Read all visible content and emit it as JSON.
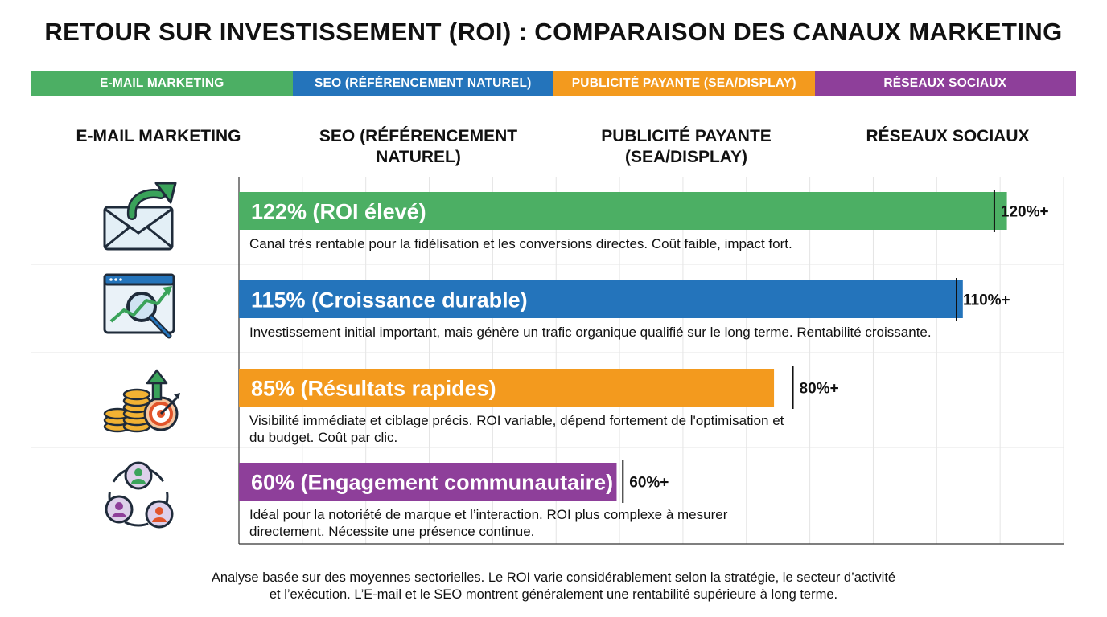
{
  "title": "RETOUR SUR INVESTISSEMENT (ROI) : COMPARAISON DES CANAUX MARKETING",
  "legend": [
    {
      "label": "E-MAIL MARKETING",
      "color": "#4CAF64"
    },
    {
      "label": "SEO (RÉFÉRENCEMENT NATUREL)",
      "color": "#2474BB"
    },
    {
      "label": "PUBLICITÉ PAYANTE (SEA/DISPLAY)",
      "color": "#F39A1E"
    },
    {
      "label": "RÉSEAUX SOCIAUX",
      "color": "#8E3F9A"
    }
  ],
  "column_headers": [
    {
      "line1": "E-MAIL MARKETING",
      "line2": ""
    },
    {
      "line1": "SEO (RÉFÉRENCEMENT",
      "line2": "NATUREL)"
    },
    {
      "line1": "PUBLICITÉ PAYANTE",
      "line2": "(SEA/DISPLAY)"
    },
    {
      "line1": "RÉSEAUX SOCIAUX",
      "line2": ""
    }
  ],
  "chart_data": {
    "type": "bar",
    "orientation": "horizontal",
    "title": "RETOUR SUR INVESTISSEMENT (ROI) : COMPARAISON DES CANAUX MARKETING",
    "categories": [
      "E-MAIL MARKETING",
      "SEO (RÉFÉRENCEMENT NATUREL)",
      "PUBLICITÉ PAYANTE (SEA/DISPLAY)",
      "RÉSEAUX SOCIAUX"
    ],
    "values": [
      122,
      115,
      85,
      60
    ],
    "unit": "%",
    "xlim": [
      0,
      131
    ],
    "grid": true,
    "bar_labels": [
      "122% (ROI élevé)",
      "115% (Croissance durable)",
      "85% (Résultats rapides)",
      "60% (Engagement communautaire)"
    ],
    "end_labels": [
      "120%+",
      "110%+",
      "80%+",
      "60%+"
    ],
    "marker_values": [
      120,
      114,
      88,
      61
    ],
    "colors": [
      "#4CAF64",
      "#2474BB",
      "#F39A1E",
      "#8E3F9A"
    ],
    "icons": [
      "envelope-growth-icon",
      "seo-analytics-icon",
      "coins-target-icon",
      "community-network-icon"
    ],
    "descriptions": [
      [
        "Canal très rentable pour la fidélisation et les conversions directes. Coût faible, impact fort."
      ],
      [
        "Investissement initial important, mais génère un trafic organique qualifié sur le long terme. Rentabilité croissante."
      ],
      [
        "Visibilité immédiate et ciblage précis. ROI variable, dépend fortement de l'optimisation et",
        "du budget. Coût par clic."
      ],
      [
        "Idéal pour la notoriété de marque et l’interaction. ROI plus complexe à mesurer",
        "directement. Nécessite une présence continue."
      ]
    ]
  },
  "footnote": [
    "Analyse basée sur des moyennes sectorielles. Le ROI varie considérablement selon la stratégie, le secteur d’activité",
    "et l’exécution. L’E-mail et le SEO montrent généralement une rentabilité supérieure à long terme."
  ]
}
